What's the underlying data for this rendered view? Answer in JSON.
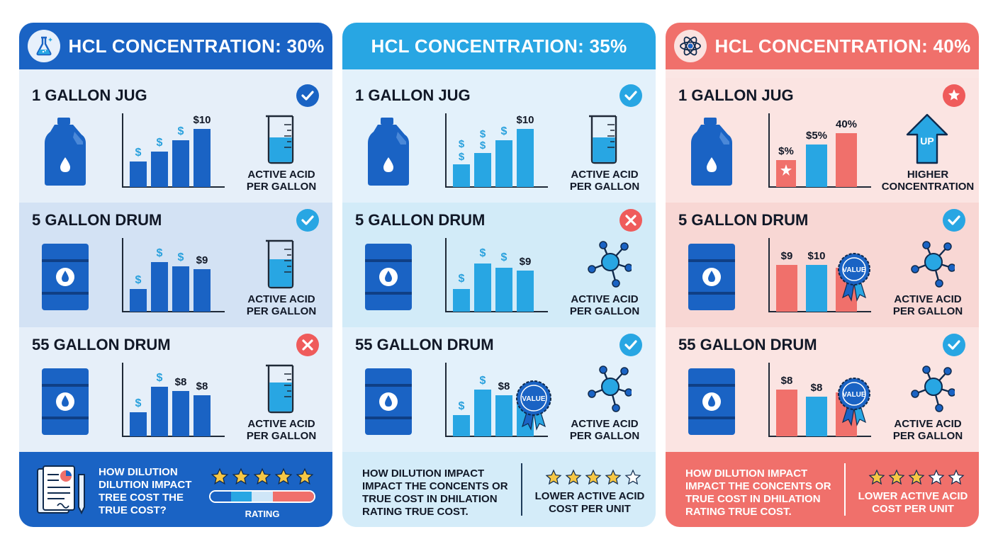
{
  "colors": {
    "blue_dark": "#1a63c4",
    "blue_light": "#28a6e3",
    "red": "#f0706b",
    "check_green": "#1a63c4",
    "x_red": "#ef5b5b"
  },
  "panels": [
    {
      "title": "HCL CONCENTRATION: 30%",
      "header_icon": "flask-icon",
      "rows": [
        {
          "title": "1 GALLON JUG",
          "status": "check",
          "container": "jug",
          "chart_labels": [
            "$",
            "$",
            "$",
            "$10"
          ],
          "icon": "beaker",
          "label_line1": "ACTIVE ACID",
          "label_line2": "PER GALLON"
        },
        {
          "title": "5 GALLON DRUM",
          "status": "check",
          "container": "drum",
          "chart_labels": [
            "$",
            "$",
            "$",
            "$9"
          ],
          "icon": "beaker",
          "label_line1": "ACTIVE ACID",
          "label_line2": "PER GALLON"
        },
        {
          "title": "55 GALLON DRUM",
          "status": "x",
          "container": "drum",
          "chart_labels": [
            "$",
            "$",
            "$8",
            "$8"
          ],
          "icon": "beaker",
          "label_line1": "ACTIVE ACID",
          "label_line2": "PER GALLON"
        }
      ],
      "footer": {
        "text_lines": [
          "HOW DILUTION",
          "DILUTION IMPACT",
          "TREE COST THE",
          "TRUE COST?"
        ],
        "stars_filled": 5,
        "rating_label": "RATING"
      }
    },
    {
      "title": "HCL CONCENTRATION: 35%",
      "rows": [
        {
          "title": "1 GALLON JUG",
          "status": "check",
          "container": "jug",
          "chart_labels": [
            "$\n$",
            "$\n$",
            "$",
            "$10"
          ],
          "icon": "beaker",
          "label_line1": "ACTIVE ACID",
          "label_line2": "PER GALLON"
        },
        {
          "title": "5 GALLON DRUM",
          "status": "x",
          "container": "drum",
          "chart_labels": [
            "$",
            "$",
            "$",
            "$9"
          ],
          "icon": "molecule",
          "label_line1": "ACTIVE ACID",
          "label_line2": "PER GALLON"
        },
        {
          "title": "55 GALLON DRUM",
          "status": "check",
          "container": "drum",
          "chart_labels": [
            "$",
            "$",
            "$8",
            ""
          ],
          "icon": "molecule",
          "badge": "VALUE",
          "label_line1": "ACTIVE ACID",
          "label_line2": "PER GALLON"
        }
      ],
      "footer": {
        "text_lines": [
          "HOW DILUTION IMPACT",
          "IMPACT THE CONCENTS OR",
          "TRUE COST IN DHILATION",
          "RATING TRUE COST."
        ],
        "stars_filled": 4,
        "right_lines": [
          "LOWER ACTIVE ACID",
          "COST PER UNIT"
        ]
      }
    },
    {
      "title": "HCL CONCENTRATION: 40%",
      "header_icon": "atom-icon",
      "rows": [
        {
          "title": "1 GALLON JUG",
          "status": "star",
          "container": "jug",
          "chart_labels": [
            "$%",
            "$5%",
            "40%"
          ],
          "icon": "up-arrow",
          "arrow_text": "UP",
          "label_line1": "HIGHER",
          "label_line2": "CONCENTRATION"
        },
        {
          "title": "5 GALLON DRUM",
          "status": "check",
          "container": "drum",
          "chart_labels": [
            "$9",
            "$10",
            ""
          ],
          "icon": "molecule",
          "badge": "VALUE",
          "label_line1": "ACTIVE ACID",
          "label_line2": "PER GALLON"
        },
        {
          "title": "55 GALLON DRUM",
          "status": "check",
          "container": "drum",
          "chart_labels": [
            "$8",
            "$8",
            ""
          ],
          "icon": "molecule",
          "badge": "VALUE",
          "label_line1": "ACTIVE ACID",
          "label_line2": "PER GALLON"
        }
      ],
      "footer": {
        "text_lines": [
          "HOW DILUTION IMPACT",
          "IMPACT THE CONCENTS OR",
          "TRUE COST IN DHILATION",
          "RATING TRUE COST."
        ],
        "stars_filled": 3,
        "right_lines": [
          "LOWER ACTIVE ACID",
          "COST PER UNIT"
        ]
      }
    }
  ]
}
